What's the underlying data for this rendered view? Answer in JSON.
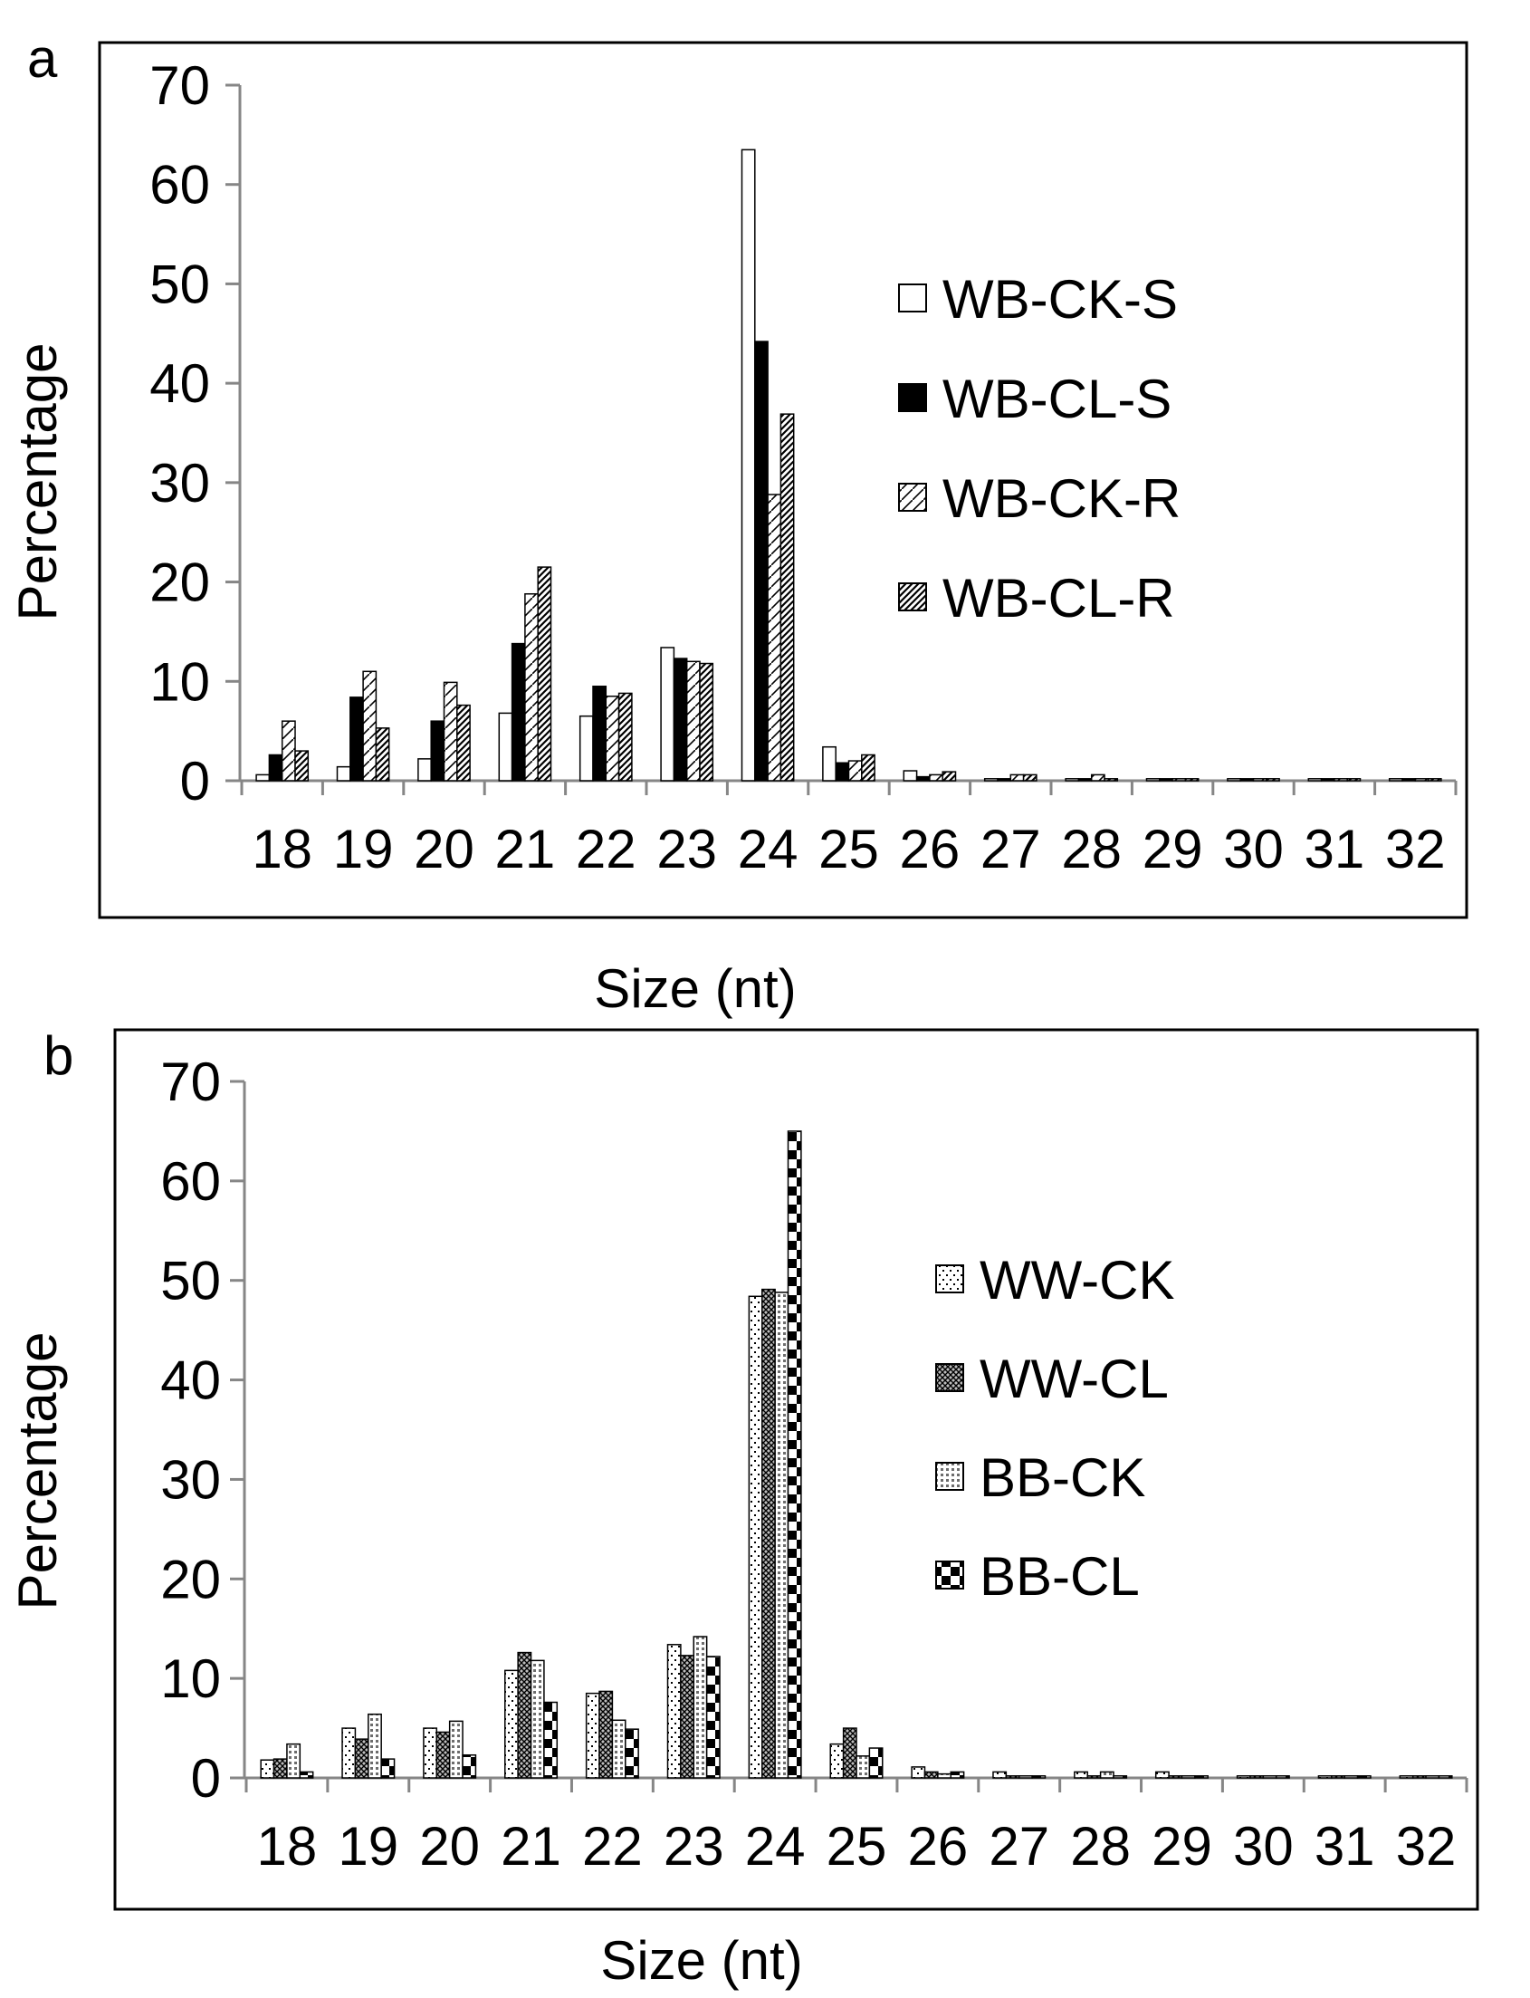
{
  "chart_data": [
    {
      "type": "bar",
      "panel_label": "a",
      "xlabel": "Size (nt)",
      "ylabel": "Percentage",
      "ylim": [
        0,
        70
      ],
      "yticks": [
        "0",
        "10",
        "20",
        "30",
        "40",
        "50",
        "60",
        "70"
      ],
      "categories": [
        "18",
        "19",
        "20",
        "21",
        "22",
        "23",
        "24",
        "25",
        "26",
        "27",
        "28",
        "29",
        "30",
        "31",
        "32"
      ],
      "legend_position": "right",
      "series": [
        {
          "name": "WB-CK-S",
          "pattern": "white",
          "values": [
            0.6,
            1.4,
            2.2,
            6.8,
            6.5,
            13.4,
            63.5,
            3.4,
            1.0,
            0.2,
            0.2,
            0.2,
            0.2,
            0.2,
            0.2
          ]
        },
        {
          "name": "WB-CL-S",
          "pattern": "black",
          "values": [
            2.6,
            8.4,
            6.0,
            13.8,
            9.5,
            12.3,
            44.2,
            1.8,
            0.4,
            0.2,
            0.2,
            0.2,
            0.2,
            0.2,
            0.2
          ]
        },
        {
          "name": "WB-CK-R",
          "pattern": "sparse-diagonal",
          "values": [
            6.0,
            11.0,
            9.9,
            18.8,
            8.5,
            12.0,
            28.8,
            2.0,
            0.6,
            0.6,
            0.6,
            0.2,
            0.2,
            0.2,
            0.2
          ]
        },
        {
          "name": "WB-CL-R",
          "pattern": "dense-diagonal",
          "values": [
            3.0,
            5.3,
            7.6,
            21.5,
            8.8,
            11.8,
            36.9,
            2.6,
            0.9,
            0.6,
            0.2,
            0.2,
            0.2,
            0.2,
            0.2
          ]
        }
      ]
    },
    {
      "type": "bar",
      "panel_label": "b",
      "xlabel": "Size (nt)",
      "ylabel": "Percentage",
      "ylim": [
        0,
        70
      ],
      "yticks": [
        "0",
        "10",
        "20",
        "30",
        "40",
        "50",
        "60",
        "70"
      ],
      "categories": [
        "18",
        "19",
        "20",
        "21",
        "22",
        "23",
        "24",
        "25",
        "26",
        "27",
        "28",
        "29",
        "30",
        "31",
        "32"
      ],
      "legend_position": "right",
      "series": [
        {
          "name": "WW-CK",
          "pattern": "sparse-dots",
          "values": [
            1.8,
            5.0,
            5.0,
            10.8,
            8.5,
            13.4,
            48.4,
            3.4,
            1.1,
            0.6,
            0.6,
            0.6,
            0.2,
            0.2,
            0.2
          ]
        },
        {
          "name": "WW-CL",
          "pattern": "dense-crosshatch",
          "values": [
            1.9,
            3.9,
            4.6,
            12.6,
            8.7,
            12.3,
            49.1,
            5.0,
            0.6,
            0.2,
            0.2,
            0.2,
            0.2,
            0.2,
            0.2
          ]
        },
        {
          "name": "BB-CK",
          "pattern": "grid-dots",
          "values": [
            3.4,
            6.4,
            5.7,
            11.8,
            5.8,
            14.2,
            48.8,
            2.2,
            0.4,
            0.2,
            0.6,
            0.2,
            0.2,
            0.2,
            0.2
          ]
        },
        {
          "name": "BB-CL",
          "pattern": "checker",
          "values": [
            0.6,
            1.9,
            2.3,
            7.6,
            4.9,
            12.2,
            65.0,
            3.0,
            0.6,
            0.2,
            0.2,
            0.2,
            0.2,
            0.2,
            0.2
          ]
        }
      ]
    }
  ]
}
